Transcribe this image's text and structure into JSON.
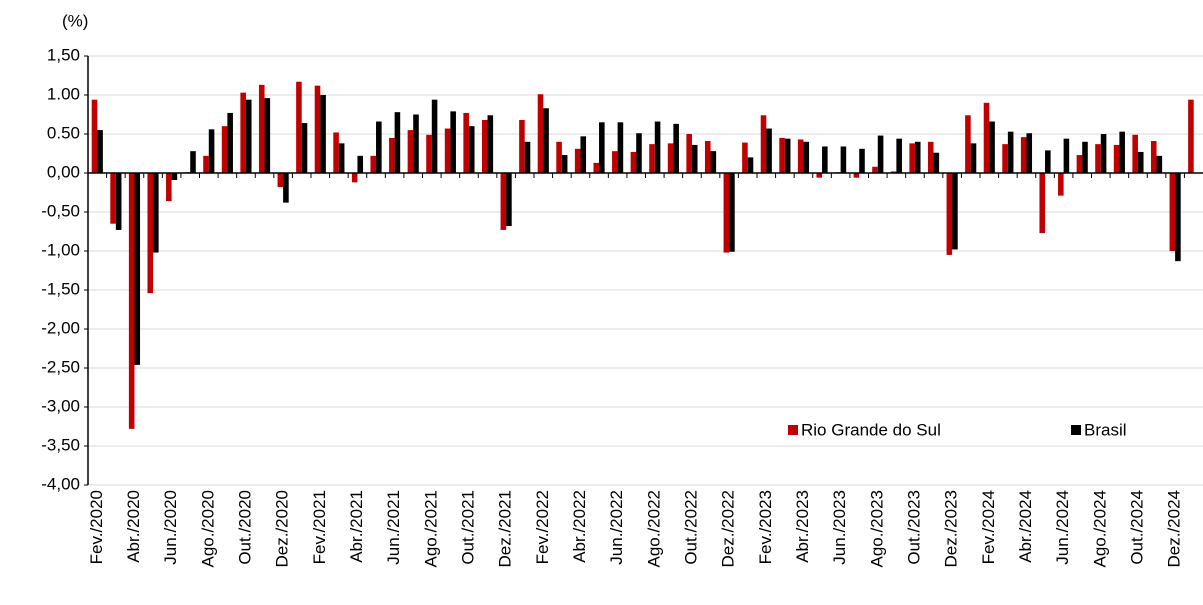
{
  "chart_data": {
    "type": "bar",
    "y_unit_label": "(%)",
    "categories": [
      "Fev./2020",
      null,
      "Abr./2020",
      null,
      "Jun./2020",
      null,
      "Ago./2020",
      null,
      "Out./2020",
      null,
      "Dez./2020",
      null,
      "Fev./2021",
      null,
      "Abr./2021",
      null,
      "Jun./2021",
      null,
      "Ago./2021",
      null,
      "Out./2021",
      null,
      "Dez./2021",
      null,
      "Fev./2022",
      null,
      "Abr./2022",
      null,
      "Jun./2022",
      null,
      "Ago./2022",
      null,
      "Out./2022",
      null,
      "Dez./2022",
      null,
      "Fev./2023",
      null,
      "Abr./2023",
      null,
      "Jun./2023",
      null,
      "Ago./2023",
      null,
      "Out./2023",
      null,
      "Dez./2023",
      null,
      "Fev./2024",
      null,
      "Abr./2024",
      null,
      "Jun./2024",
      null,
      "Ago./2024",
      null,
      "Out./2024",
      null,
      "Dez./2024",
      null
    ],
    "series": [
      {
        "name": "Rio Grande do Sul",
        "color": "#c00000",
        "values": [
          0.94,
          -0.65,
          -3.28,
          -1.54,
          -0.36,
          0.01,
          0.22,
          0.6,
          1.03,
          1.13,
          -0.18,
          1.17,
          1.12,
          0.52,
          -0.12,
          0.22,
          0.45,
          0.55,
          0.49,
          0.57,
          0.77,
          0.68,
          -0.73,
          0.68,
          1.01,
          0.4,
          0.31,
          0.13,
          0.28,
          0.27,
          0.37,
          0.38,
          0.5,
          0.41,
          -1.02,
          0.39,
          0.74,
          0.45,
          0.43,
          -0.06,
          0.01,
          -0.06,
          0.08,
          0.02,
          0.38,
          0.4,
          -1.05,
          0.74,
          0.9,
          0.37,
          0.46,
          -0.77,
          -0.29,
          0.23,
          0.37,
          0.36,
          0.49,
          0.41,
          -1.0,
          0.94
        ]
      },
      {
        "name": "Brasil",
        "color": "#000000",
        "values": [
          0.55,
          -0.73,
          -2.46,
          -1.02,
          -0.09,
          0.28,
          0.56,
          0.77,
          0.94,
          0.96,
          -0.38,
          0.64,
          1.0,
          0.38,
          0.22,
          0.66,
          0.78,
          0.75,
          0.94,
          0.79,
          0.6,
          0.74,
          -0.68,
          0.4,
          0.83,
          0.23,
          0.47,
          0.65,
          0.65,
          0.51,
          0.66,
          0.63,
          0.36,
          0.28,
          -1.01,
          0.2,
          0.57,
          0.44,
          0.4,
          0.34,
          0.34,
          0.31,
          0.48,
          0.44,
          0.4,
          0.26,
          -0.98,
          0.38,
          0.66,
          0.53,
          0.51,
          0.29,
          0.44,
          0.4,
          0.5,
          0.53,
          0.27,
          0.22,
          -1.13,
          null
        ]
      }
    ],
    "ylim": [
      -4.0,
      1.5
    ],
    "yticks": [
      {
        "value": 1.5,
        "label": "1,50"
      },
      {
        "value": 1.0,
        "label": "1.00"
      },
      {
        "value": 0.5,
        "label": "0.50"
      },
      {
        "value": 0,
        "label": "0,00"
      },
      {
        "value": -0.5,
        "label": "-0,50"
      },
      {
        "value": -1.0,
        "label": "-1,00"
      },
      {
        "value": -1.5,
        "label": "-1,50"
      },
      {
        "value": -2.0,
        "label": "-2,00"
      },
      {
        "value": -2.5,
        "label": "-2,50"
      },
      {
        "value": -3.0,
        "label": "-3,00"
      },
      {
        "value": -3.5,
        "label": "-3,50"
      },
      {
        "value": -4.0,
        "label": "-4,00"
      }
    ],
    "grid": true,
    "legend": "lower right"
  }
}
